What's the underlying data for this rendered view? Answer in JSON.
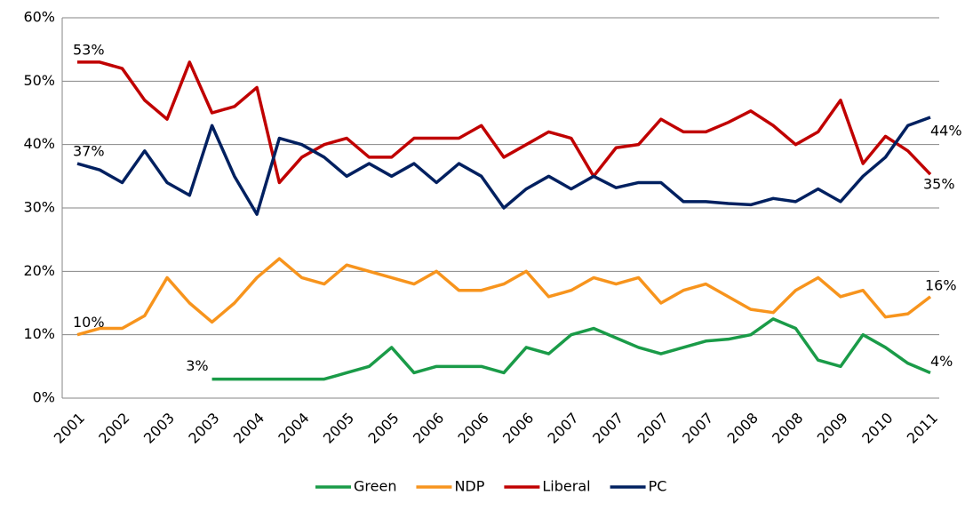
{
  "chart_data": {
    "type": "line",
    "categories": [
      "2001",
      null,
      "2002",
      null,
      "2003",
      null,
      "2003",
      null,
      "2004",
      null,
      "2004",
      null,
      "2005",
      null,
      "2005",
      null,
      "2006",
      null,
      "2006",
      null,
      "2006",
      null,
      "2007",
      null,
      "2007",
      null,
      "2007",
      null,
      "2007",
      null,
      "2008",
      null,
      "2008",
      null,
      "2009",
      null,
      "2010",
      null,
      "2011"
    ],
    "series": [
      {
        "name": "Green",
        "color": "#1a9b48",
        "values": [
          null,
          null,
          null,
          null,
          null,
          null,
          3,
          3,
          3,
          3,
          3,
          3,
          4,
          5,
          8,
          4,
          5,
          5,
          5,
          4,
          8,
          7,
          10,
          11,
          9.5,
          8,
          7,
          8,
          9,
          9.3,
          10,
          12.5,
          11,
          6,
          5,
          10,
          8,
          5.5,
          4
        ],
        "value_labels": [
          null,
          null,
          null,
          null,
          null,
          null,
          "3%",
          null,
          null,
          null,
          null,
          null,
          null,
          null,
          null,
          null,
          null,
          null,
          null,
          null,
          null,
          null,
          null,
          null,
          null,
          null,
          null,
          null,
          null,
          null,
          null,
          null,
          null,
          null,
          null,
          null,
          null,
          null,
          "4%"
        ]
      },
      {
        "name": "NDP",
        "color": "#f7941d",
        "values": [
          10,
          11,
          11,
          13,
          19,
          15,
          12,
          15,
          19,
          22,
          19,
          18,
          21,
          20,
          19,
          18,
          20,
          17,
          17,
          18,
          20,
          16,
          17,
          19,
          18,
          19,
          15,
          17,
          18,
          16,
          14,
          13.5,
          17,
          19,
          16,
          17,
          12.8,
          13.3,
          16
        ],
        "value_labels": [
          "10%",
          null,
          null,
          null,
          null,
          null,
          null,
          null,
          null,
          null,
          null,
          null,
          null,
          null,
          null,
          null,
          null,
          null,
          null,
          null,
          null,
          null,
          null,
          null,
          null,
          null,
          null,
          null,
          null,
          null,
          null,
          null,
          null,
          null,
          null,
          null,
          null,
          null,
          "16%"
        ]
      },
      {
        "name": "Liberal",
        "color": "#c00000",
        "values": [
          53,
          53,
          52,
          47,
          44,
          53,
          45,
          46,
          49,
          34,
          38,
          40,
          41,
          38,
          38,
          41,
          41,
          41,
          43,
          38,
          40,
          42,
          41,
          35,
          39.5,
          40,
          44,
          42,
          42,
          43.5,
          45.3,
          43,
          40,
          42,
          47,
          37,
          41.3,
          39,
          35.3
        ],
        "value_labels": [
          "53%",
          null,
          null,
          null,
          null,
          null,
          null,
          null,
          null,
          null,
          null,
          null,
          null,
          null,
          null,
          null,
          null,
          null,
          null,
          null,
          null,
          null,
          null,
          null,
          null,
          null,
          null,
          null,
          null,
          null,
          null,
          null,
          null,
          null,
          null,
          null,
          null,
          null,
          "35%"
        ]
      },
      {
        "name": "PC",
        "color": "#002060",
        "values": [
          37,
          36,
          34,
          39,
          34,
          32,
          43,
          35,
          29,
          41,
          40,
          38,
          35,
          37,
          35,
          37,
          34,
          37,
          35,
          30,
          33,
          35,
          33,
          35,
          33.2,
          34,
          34,
          31,
          31,
          30.7,
          30.5,
          31.5,
          31,
          33,
          31,
          35,
          38,
          43,
          44.3
        ],
        "value_labels": [
          "37%",
          null,
          null,
          null,
          null,
          null,
          null,
          null,
          null,
          null,
          null,
          null,
          null,
          null,
          null,
          null,
          null,
          null,
          null,
          null,
          null,
          null,
          null,
          null,
          null,
          null,
          null,
          null,
          null,
          null,
          null,
          null,
          null,
          null,
          null,
          null,
          null,
          null,
          "44%"
        ]
      }
    ],
    "ylim": [
      0,
      60
    ],
    "yticks": [
      {
        "value": 0,
        "label": "0%"
      },
      {
        "value": 10,
        "label": "10%"
      },
      {
        "value": 20,
        "label": "20%"
      },
      {
        "value": 30,
        "label": "30%"
      },
      {
        "value": 40,
        "label": "40%"
      },
      {
        "value": 50,
        "label": "50%"
      },
      {
        "value": 60,
        "label": "60%"
      }
    ],
    "grid": true,
    "legend": "bottom"
  }
}
